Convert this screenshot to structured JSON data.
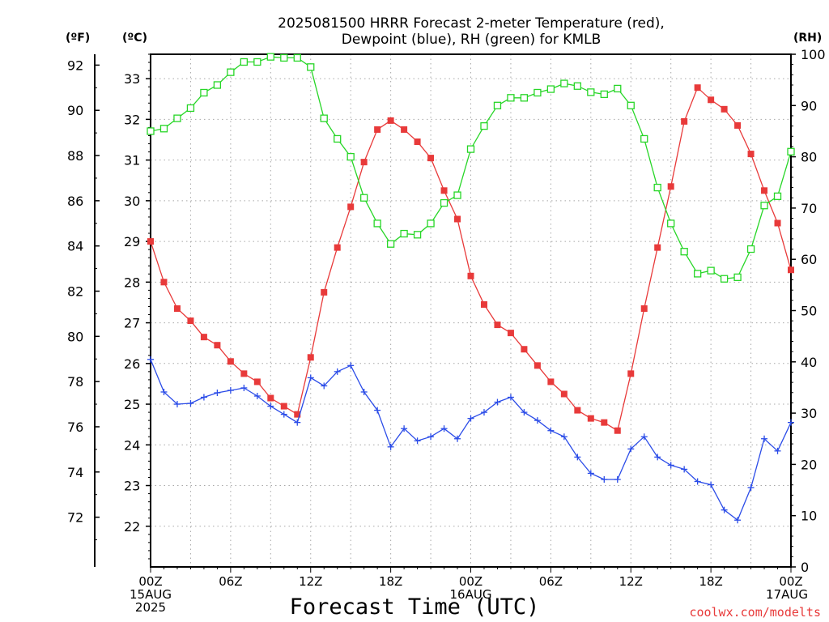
{
  "chart_data": {
    "type": "line",
    "title_lines": [
      "2025081500 HRRR Forecast 2-meter Temperature (red),",
      "Dewpoint (blue), RH (green) for KMLB"
    ],
    "xlabel": "Forecast Time (UTC)",
    "credit": "coolwx.com/modelts",
    "units": {
      "fahrenheit": "(ºF)",
      "celsius": "(ºC)",
      "rh": "(RH)"
    },
    "x_hours": [
      0,
      1,
      2,
      3,
      4,
      5,
      6,
      7,
      8,
      9,
      10,
      11,
      12,
      13,
      14,
      15,
      16,
      17,
      18,
      19,
      20,
      21,
      22,
      23,
      24,
      25,
      26,
      27,
      28,
      29,
      30,
      31,
      32,
      33,
      34,
      35,
      36,
      37,
      38,
      39,
      40,
      41,
      42,
      43,
      44,
      45,
      46,
      47,
      48
    ],
    "xlim": [
      0,
      48
    ],
    "x_ticks": [
      {
        "hour": 0,
        "lines": [
          "00Z",
          "15AUG",
          "2025"
        ]
      },
      {
        "hour": 6,
        "lines": [
          "06Z"
        ]
      },
      {
        "hour": 12,
        "lines": [
          "12Z"
        ]
      },
      {
        "hour": 18,
        "lines": [
          "18Z"
        ]
      },
      {
        "hour": 24,
        "lines": [
          "00Z",
          "16AUG"
        ]
      },
      {
        "hour": 30,
        "lines": [
          "06Z"
        ]
      },
      {
        "hour": 36,
        "lines": [
          "12Z"
        ]
      },
      {
        "hour": 42,
        "lines": [
          "18Z"
        ]
      },
      {
        "hour": 48,
        "lines": [
          "00Z",
          "17AUG"
        ]
      }
    ],
    "yF_ticks": [
      "72",
      "74",
      "76",
      "78",
      "80",
      "82",
      "84",
      "86",
      "88",
      "90",
      "92"
    ],
    "yC_ticks": [
      "22",
      "23",
      "24",
      "25",
      "26",
      "27",
      "28",
      "29",
      "30",
      "31",
      "32",
      "33"
    ],
    "rh_ticks": [
      "0",
      "10",
      "20",
      "30",
      "40",
      "50",
      "60",
      "70",
      "80",
      "90",
      "100"
    ],
    "ylim_celsius": [
      21.0,
      33.6
    ],
    "ylim_fahrenheit": [
      69.8,
      92.48
    ],
    "ylim_rh": [
      0,
      100
    ],
    "grid": true,
    "series": [
      {
        "name": "Temperature",
        "axis": "celsius",
        "color": "#e83a3a",
        "marker": "filled-square",
        "values": [
          29.0,
          28.0,
          27.35,
          27.05,
          26.65,
          26.45,
          26.05,
          25.75,
          25.55,
          25.15,
          24.95,
          24.75,
          26.15,
          27.75,
          28.85,
          29.85,
          30.95,
          31.75,
          31.97,
          31.75,
          31.45,
          31.05,
          30.25,
          29.55,
          28.15,
          27.45,
          26.95,
          26.75,
          26.35,
          25.95,
          25.55,
          25.25,
          24.85,
          24.65,
          24.55,
          24.35,
          25.75,
          27.35,
          28.85,
          30.35,
          31.95,
          32.78,
          32.48,
          32.25,
          31.85,
          31.15,
          30.25,
          29.45,
          28.3
        ]
      },
      {
        "name": "Dewpoint",
        "axis": "celsius",
        "color": "#2b4ce8",
        "marker": "plus",
        "values": [
          26.1,
          25.3,
          25.0,
          25.02,
          25.17,
          25.28,
          25.34,
          25.4,
          25.2,
          24.95,
          24.75,
          24.55,
          25.65,
          25.45,
          25.8,
          25.95,
          25.3,
          24.85,
          23.95,
          24.4,
          24.1,
          24.2,
          24.4,
          24.15,
          24.65,
          24.8,
          25.05,
          25.17,
          24.8,
          24.6,
          24.35,
          24.2,
          23.7,
          23.3,
          23.15,
          23.15,
          23.9,
          24.2,
          23.7,
          23.5,
          23.4,
          23.1,
          23.02,
          22.4,
          22.15,
          22.95,
          24.15,
          23.85,
          24.55
        ]
      },
      {
        "name": "RH",
        "axis": "rh",
        "color": "#27d627",
        "marker": "open-square",
        "values": [
          85,
          85.5,
          87.5,
          89.5,
          92.5,
          94,
          96.5,
          98.5,
          98.5,
          99.5,
          99.3,
          99.3,
          97.5,
          87.5,
          83.5,
          80,
          72,
          67,
          63,
          65,
          64.8,
          67,
          71,
          72.5,
          81.5,
          86,
          90,
          91.5,
          91.5,
          92.5,
          93.2,
          94.3,
          93.8,
          92.6,
          92.2,
          93.3,
          90,
          83.5,
          74,
          67,
          61.5,
          57.2,
          57.8,
          56.2,
          56.5,
          62,
          70.5,
          72.3,
          81
        ]
      }
    ]
  }
}
